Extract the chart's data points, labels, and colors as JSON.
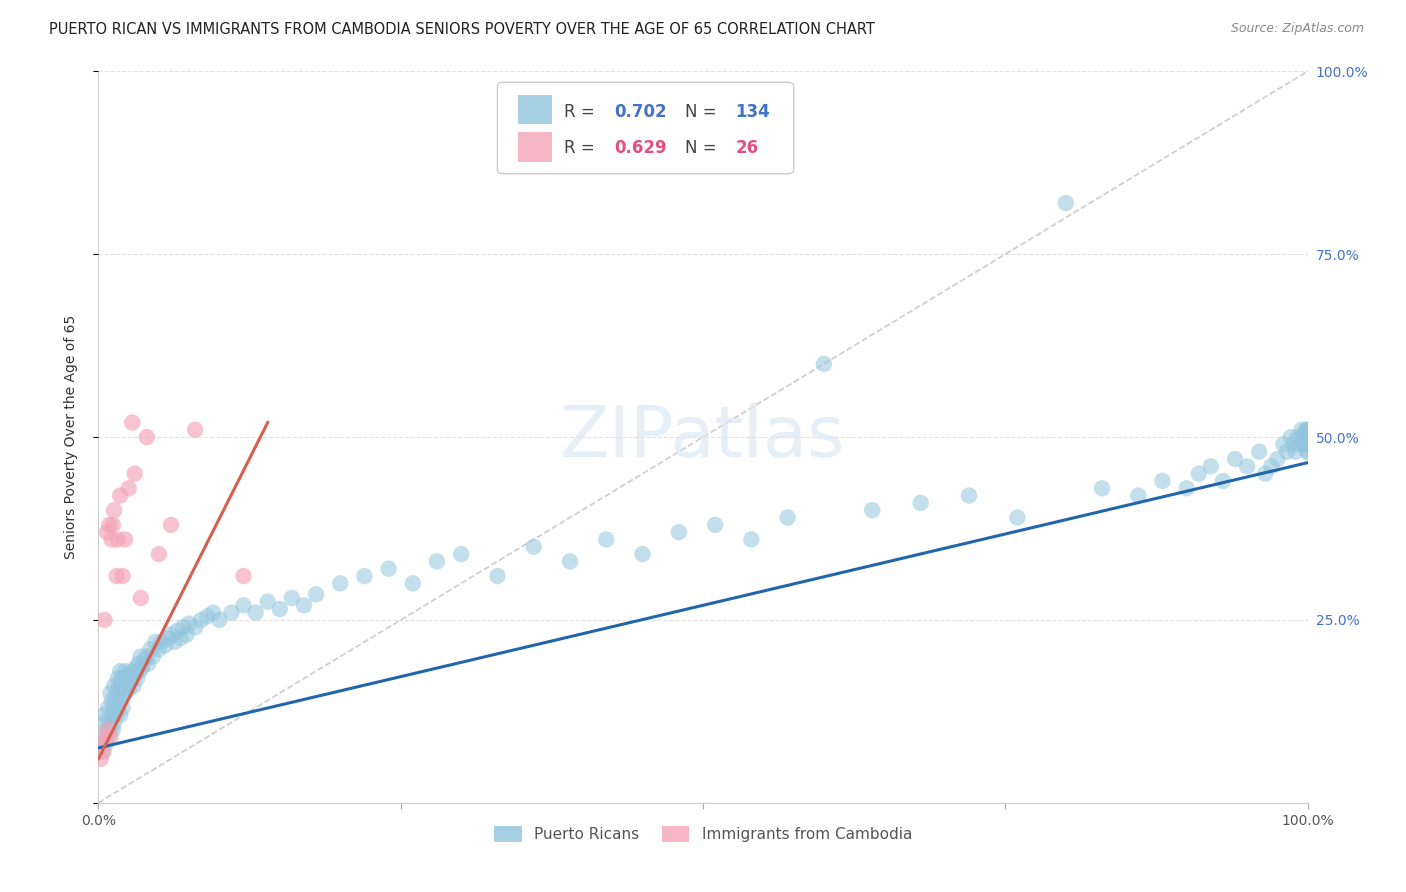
{
  "title": "PUERTO RICAN VS IMMIGRANTS FROM CAMBODIA SENIORS POVERTY OVER THE AGE OF 65 CORRELATION CHART",
  "source": "Source: ZipAtlas.com",
  "ylabel": "Seniors Poverty Over the Age of 65",
  "xlim": [
    0,
    1.0
  ],
  "ylim": [
    0,
    1.0
  ],
  "legend_labels": [
    "Puerto Ricans",
    "Immigrants from Cambodia"
  ],
  "blue_R": 0.702,
  "blue_N": 134,
  "pink_R": 0.629,
  "pink_N": 26,
  "blue_color": "#92c5de",
  "pink_color": "#f4a4b8",
  "blue_line_color": "#2166ac",
  "pink_line_color": "#d6604d",
  "trend_line_color_dashed": "#cccccc",
  "blue_scatter_x": [
    0.002,
    0.003,
    0.004,
    0.005,
    0.005,
    0.006,
    0.007,
    0.008,
    0.008,
    0.009,
    0.01,
    0.01,
    0.011,
    0.011,
    0.012,
    0.012,
    0.013,
    0.013,
    0.014,
    0.015,
    0.015,
    0.016,
    0.016,
    0.017,
    0.017,
    0.018,
    0.018,
    0.019,
    0.019,
    0.02,
    0.02,
    0.021,
    0.022,
    0.022,
    0.023,
    0.024,
    0.025,
    0.025,
    0.026,
    0.027,
    0.028,
    0.029,
    0.03,
    0.031,
    0.032,
    0.033,
    0.034,
    0.035,
    0.036,
    0.038,
    0.04,
    0.041,
    0.043,
    0.045,
    0.047,
    0.05,
    0.052,
    0.055,
    0.058,
    0.06,
    0.063,
    0.065,
    0.068,
    0.07,
    0.073,
    0.075,
    0.08,
    0.085,
    0.09,
    0.095,
    0.1,
    0.11,
    0.12,
    0.13,
    0.14,
    0.15,
    0.16,
    0.17,
    0.18,
    0.2,
    0.22,
    0.24,
    0.26,
    0.28,
    0.3,
    0.33,
    0.36,
    0.39,
    0.42,
    0.45,
    0.48,
    0.51,
    0.54,
    0.57,
    0.6,
    0.64,
    0.68,
    0.72,
    0.76,
    0.8,
    0.83,
    0.86,
    0.88,
    0.9,
    0.91,
    0.92,
    0.93,
    0.94,
    0.95,
    0.96,
    0.965,
    0.97,
    0.975,
    0.98,
    0.983,
    0.986,
    0.988,
    0.99,
    0.992,
    0.994,
    0.995,
    0.996,
    0.997,
    0.998,
    0.999,
    1.0,
    1.0,
    1.0,
    1.0,
    1.0,
    1.0,
    1.0,
    1.0,
    1.0
  ],
  "blue_scatter_y": [
    0.08,
    0.09,
    0.07,
    0.11,
    0.12,
    0.08,
    0.1,
    0.09,
    0.13,
    0.11,
    0.1,
    0.15,
    0.12,
    0.14,
    0.1,
    0.13,
    0.11,
    0.16,
    0.14,
    0.12,
    0.15,
    0.13,
    0.17,
    0.14,
    0.16,
    0.12,
    0.18,
    0.15,
    0.17,
    0.13,
    0.16,
    0.17,
    0.15,
    0.18,
    0.16,
    0.17,
    0.155,
    0.175,
    0.165,
    0.17,
    0.18,
    0.16,
    0.175,
    0.185,
    0.17,
    0.19,
    0.18,
    0.2,
    0.185,
    0.195,
    0.2,
    0.19,
    0.21,
    0.2,
    0.22,
    0.21,
    0.22,
    0.215,
    0.225,
    0.23,
    0.22,
    0.235,
    0.225,
    0.24,
    0.23,
    0.245,
    0.24,
    0.25,
    0.255,
    0.26,
    0.25,
    0.26,
    0.27,
    0.26,
    0.275,
    0.265,
    0.28,
    0.27,
    0.285,
    0.3,
    0.31,
    0.32,
    0.3,
    0.33,
    0.34,
    0.31,
    0.35,
    0.33,
    0.36,
    0.34,
    0.37,
    0.38,
    0.36,
    0.39,
    0.6,
    0.4,
    0.41,
    0.42,
    0.39,
    0.82,
    0.43,
    0.42,
    0.44,
    0.43,
    0.45,
    0.46,
    0.44,
    0.47,
    0.46,
    0.48,
    0.45,
    0.46,
    0.47,
    0.49,
    0.48,
    0.5,
    0.49,
    0.48,
    0.5,
    0.49,
    0.51,
    0.5,
    0.49,
    0.5,
    0.51,
    0.48,
    0.49,
    0.5,
    0.51,
    0.49,
    0.5,
    0.48,
    0.51,
    0.5
  ],
  "pink_scatter_x": [
    0.002,
    0.003,
    0.004,
    0.005,
    0.006,
    0.007,
    0.008,
    0.009,
    0.01,
    0.011,
    0.012,
    0.013,
    0.015,
    0.016,
    0.018,
    0.02,
    0.022,
    0.025,
    0.028,
    0.03,
    0.035,
    0.04,
    0.05,
    0.06,
    0.08,
    0.12
  ],
  "pink_scatter_y": [
    0.06,
    0.08,
    0.07,
    0.25,
    0.09,
    0.37,
    0.1,
    0.38,
    0.09,
    0.36,
    0.38,
    0.4,
    0.31,
    0.36,
    0.42,
    0.31,
    0.36,
    0.43,
    0.52,
    0.45,
    0.28,
    0.5,
    0.34,
    0.38,
    0.51,
    0.31
  ],
  "blue_line_x": [
    0.0,
    1.0
  ],
  "blue_line_y": [
    0.075,
    0.465
  ],
  "pink_line_x": [
    0.0,
    0.14
  ],
  "pink_line_y": [
    0.06,
    0.52
  ],
  "dashed_line_x": [
    0.0,
    1.0
  ],
  "dashed_line_y": [
    0.0,
    1.0
  ]
}
